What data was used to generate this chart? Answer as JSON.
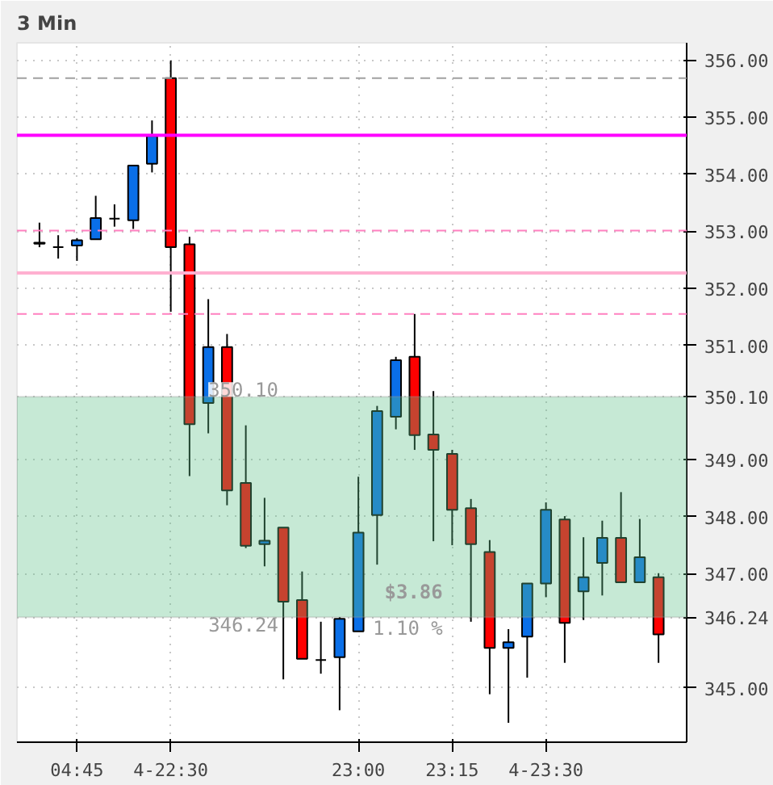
{
  "chart_data": {
    "type": "candlestick",
    "title": "3 Min",
    "categories": [
      null,
      null,
      "04:45",
      null,
      null,
      null,
      null,
      "4-22:30",
      null,
      null,
      null,
      null,
      null,
      null,
      null,
      null,
      null,
      "23:00",
      null,
      null,
      null,
      null,
      "23:15",
      null,
      null,
      null,
      null,
      "4-23:30",
      null,
      null,
      null,
      null,
      null,
      null
    ],
    "ohlc": [
      [
        352.78,
        353.15,
        352.72,
        352.8
      ],
      [
        352.72,
        352.93,
        352.52,
        352.72
      ],
      [
        352.75,
        352.88,
        352.48,
        352.84
      ],
      [
        352.86,
        353.62,
        352.86,
        353.23
      ],
      [
        353.22,
        353.47,
        353.08,
        353.22
      ],
      [
        353.19,
        354.15,
        353.04,
        354.15
      ],
      [
        354.18,
        354.94,
        354.03,
        354.67
      ],
      [
        355.68,
        355.99,
        351.59,
        352.72
      ],
      [
        352.77,
        352.9,
        348.71,
        349.62
      ],
      [
        349.99,
        351.81,
        349.46,
        350.97
      ],
      [
        350.97,
        351.2,
        348.2,
        348.46
      ],
      [
        348.59,
        349.6,
        347.45,
        347.49
      ],
      [
        347.52,
        348.33,
        347.13,
        347.58
      ],
      [
        347.81,
        347.81,
        345.15,
        346.51
      ],
      [
        346.54,
        347.04,
        345.51,
        345.51
      ],
      [
        345.49,
        346.16,
        345.25,
        345.49
      ],
      [
        345.54,
        346.24,
        344.61,
        346.21
      ],
      [
        345.99,
        348.7,
        345.99,
        347.72
      ],
      [
        348.03,
        349.94,
        347.16,
        349.85
      ],
      [
        349.75,
        350.8,
        349.53,
        350.74
      ],
      [
        350.8,
        351.55,
        349.17,
        349.43
      ],
      [
        349.44,
        350.2,
        347.57,
        349.17
      ],
      [
        349.1,
        349.17,
        347.5,
        348.12
      ],
      [
        348.15,
        348.31,
        346.16,
        347.52
      ],
      [
        347.38,
        347.59,
        344.89,
        345.7
      ],
      [
        345.7,
        346.03,
        344.39,
        345.8
      ],
      [
        345.9,
        346.83,
        345.18,
        346.83
      ],
      [
        346.83,
        348.25,
        346.59,
        348.12
      ],
      [
        347.95,
        348.01,
        345.44,
        346.14
      ],
      [
        346.69,
        347.64,
        346.19,
        346.94
      ],
      [
        347.19,
        347.93,
        346.62,
        347.63
      ],
      [
        347.63,
        348.43,
        346.85,
        346.85
      ],
      [
        346.85,
        347.96,
        346.85,
        347.29
      ],
      [
        346.94,
        347.01,
        345.44,
        345.94
      ]
    ],
    "ylim": [
      344.05,
      356.3
    ],
    "yticks": [
      {
        "value": 345,
        "label": "345.00"
      },
      {
        "value": 346.24,
        "label": "346.24"
      },
      {
        "value": 347,
        "label": "347.00"
      },
      {
        "value": 348,
        "label": "348.00"
      },
      {
        "value": 349,
        "label": "349.00"
      },
      {
        "value": 350.1,
        "label": "350.10"
      },
      {
        "value": 351,
        "label": "351.00"
      },
      {
        "value": 352,
        "label": "352.00"
      },
      {
        "value": 353,
        "label": "353.00"
      },
      {
        "value": 354,
        "label": "354.00"
      },
      {
        "value": 355,
        "label": "355.00"
      },
      {
        "value": 356,
        "label": "356.00"
      }
    ],
    "ref_lines": [
      {
        "axis": "y",
        "value": 355.68,
        "color": "#a0a0a0",
        "line_style": "dashed"
      },
      {
        "axis": "y",
        "value": 354.68,
        "color": "#ff00ff",
        "line_style": "solid"
      },
      {
        "axis": "y",
        "value": 353.01,
        "color": "#ff80c0",
        "line_style": "dashed"
      },
      {
        "axis": "y",
        "value": 352.27,
        "color": "#ffb0d0",
        "line_style": "solid"
      },
      {
        "axis": "y",
        "value": 351.55,
        "color": "#ff80c0",
        "line_style": "dashed"
      }
    ],
    "bands": [
      {
        "axis": "y",
        "from": 346.24,
        "to": 350.1,
        "color": "#5cc087"
      }
    ],
    "annotations": [
      "350.10",
      "346.24",
      "$3.86",
      "1.10 %"
    ],
    "grid": true
  }
}
